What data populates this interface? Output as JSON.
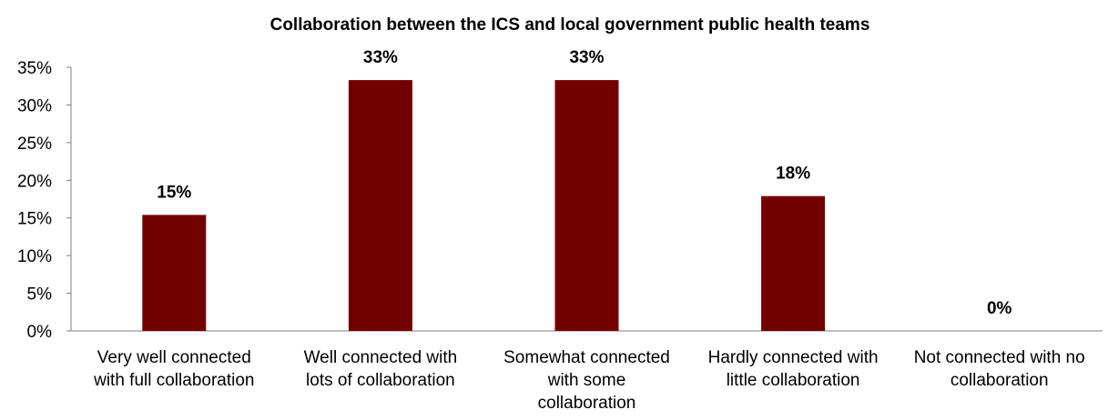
{
  "chart_data": {
    "type": "bar",
    "title": "Collaboration between the ICS and local government public health teams",
    "categories": [
      [
        "Very well connected",
        "with full collaboration"
      ],
      [
        "Well connected with",
        "lots of collaboration"
      ],
      [
        "Somewhat connected",
        "with some",
        "collaboration"
      ],
      [
        "Hardly connected with",
        "little collaboration"
      ],
      [
        "Not connected with no",
        "collaboration"
      ]
    ],
    "values": [
      15.4,
      33.3,
      33.3,
      17.9,
      0
    ],
    "data_labels": [
      "15%",
      "33%",
      "33%",
      "18%",
      "0%"
    ],
    "yticks": [
      "0%",
      "5%",
      "10%",
      "15%",
      "20%",
      "25%",
      "30%",
      "35%"
    ],
    "ylim": [
      0,
      35
    ],
    "xlabel": "",
    "ylabel": "",
    "grid": false,
    "bar_color": "#730000"
  }
}
